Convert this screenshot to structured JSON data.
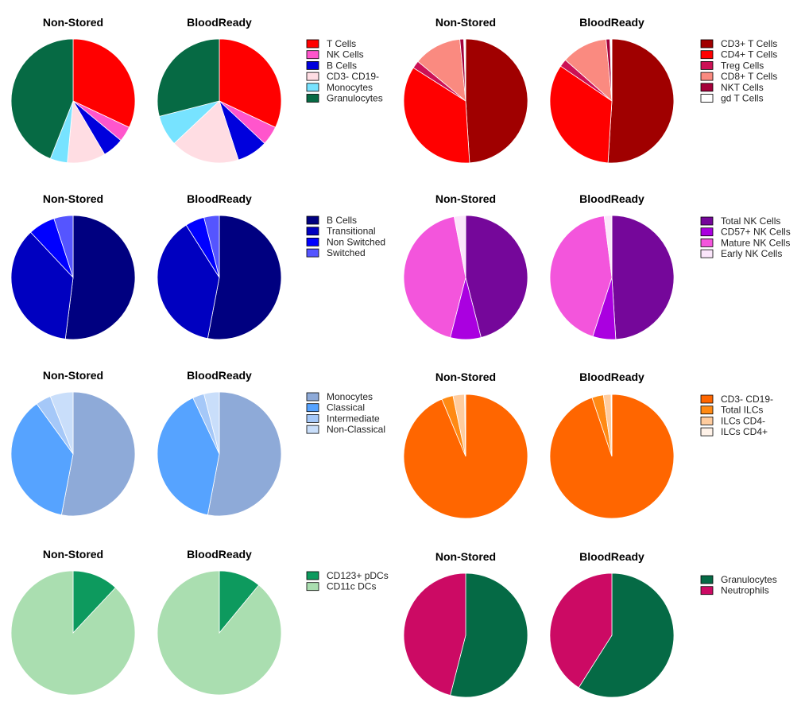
{
  "panel_titles": {
    "left": "Non-Stored",
    "right": "BloodReady"
  },
  "chart_data": [
    {
      "type": "pie",
      "title_left": "Non-Stored",
      "title_right": "BloodReady",
      "categories": [
        "T Cells",
        "NK Cells",
        "B Cells",
        "CD3- CD19-",
        "Monocytes",
        "Granulocytes"
      ],
      "colors": [
        "#ff0000",
        "#ff55cc",
        "#0000dd",
        "#ffdde3",
        "#77e3ff",
        "#066a44"
      ],
      "series": [
        {
          "name": "Non-Stored",
          "values": [
            32,
            4,
            5.5,
            10,
            4.5,
            44
          ]
        },
        {
          "name": "BloodReady",
          "values": [
            32,
            5,
            8,
            18,
            8,
            29
          ]
        }
      ]
    },
    {
      "type": "pie",
      "title_left": "Non-Stored",
      "title_right": "BloodReady",
      "categories": [
        "CD3+ T Cells",
        "CD4+ T Cells",
        "Treg Cells",
        "CD8+ T Cells",
        "NKT Cells",
        "gd T Cells"
      ],
      "colors": [
        "#a00000",
        "#ff0000",
        "#cc1155",
        "#fa8a80",
        "#a5003a",
        "#ffffff"
      ],
      "series": [
        {
          "name": "Non-Stored",
          "values": [
            49,
            35,
            2,
            12.5,
            1,
            0.5
          ]
        },
        {
          "name": "BloodReady",
          "values": [
            51,
            33.5,
            2,
            12,
            1,
            0.5
          ]
        }
      ]
    },
    {
      "type": "pie",
      "title_left": "Non-Stored",
      "title_right": "BloodReady",
      "categories": [
        "B Cells",
        "Transitional",
        "Non Switched",
        "Switched"
      ],
      "colors": [
        "#000080",
        "#0000c0",
        "#0000ff",
        "#5555ff"
      ],
      "series": [
        {
          "name": "Non-Stored",
          "values": [
            52,
            36,
            7,
            5
          ]
        },
        {
          "name": "BloodReady",
          "values": [
            53,
            38,
            5,
            4
          ]
        }
      ]
    },
    {
      "type": "pie",
      "title_left": "Non-Stored",
      "title_right": "BloodReady",
      "categories": [
        "Total NK Cells",
        "CD57+ NK Cells",
        "Mature NK Cells",
        "Early NK Cells"
      ],
      "colors": [
        "#75079a",
        "#aa00e0",
        "#f355dc",
        "#fbe6fb"
      ],
      "series": [
        {
          "name": "Non-Stored",
          "values": [
            46,
            8,
            43,
            3
          ]
        },
        {
          "name": "BloodReady",
          "values": [
            49,
            6,
            43,
            2
          ]
        }
      ]
    },
    {
      "type": "pie",
      "title_left": "Non-Stored",
      "title_right": "BloodReady",
      "categories": [
        "Monocytes",
        "Classical",
        "Intermediate",
        "Non-Classical"
      ],
      "colors": [
        "#8eaad8",
        "#56a3ff",
        "#a5c8f8",
        "#c9defa"
      ],
      "series": [
        {
          "name": "Non-Stored",
          "values": [
            53,
            37,
            4,
            6
          ]
        },
        {
          "name": "BloodReady",
          "values": [
            53,
            40,
            3,
            4
          ]
        }
      ]
    },
    {
      "type": "pie",
      "title_left": "Non-Stored",
      "title_right": "BloodReady",
      "categories": [
        "CD3- CD19-",
        "Total ILCs",
        "ILCs CD4-",
        "ILCs CD4+"
      ],
      "colors": [
        "#ff6600",
        "#ff8a14",
        "#ffcc9e",
        "#fff2e8"
      ],
      "series": [
        {
          "name": "Non-Stored",
          "values": [
            94,
            3,
            3,
            0.3
          ]
        },
        {
          "name": "BloodReady",
          "values": [
            95,
            3,
            2,
            0.2
          ]
        }
      ]
    },
    {
      "type": "pie",
      "title_left": "Non-Stored",
      "title_right": "BloodReady",
      "categories": [
        "CD123+ pDCs",
        "CD11c DCs"
      ],
      "colors": [
        "#0d9a5e",
        "#aadeb0"
      ],
      "series": [
        {
          "name": "Non-Stored",
          "values": [
            12,
            88
          ]
        },
        {
          "name": "BloodReady",
          "values": [
            11,
            89
          ]
        }
      ]
    },
    {
      "type": "pie",
      "title_left": "Non-Stored",
      "title_right": "BloodReady",
      "categories": [
        "Granulocytes",
        "Neutrophils"
      ],
      "colors": [
        "#056a45",
        "#cc0a64"
      ],
      "series": [
        {
          "name": "Non-Stored",
          "values": [
            54,
            46
          ]
        },
        {
          "name": "BloodReady",
          "values": [
            59,
            41
          ]
        }
      ]
    }
  ]
}
